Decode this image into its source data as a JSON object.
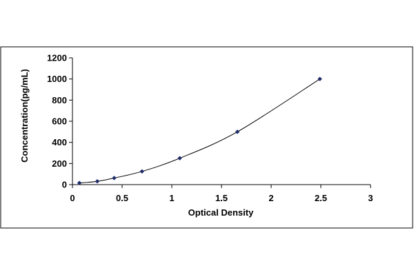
{
  "chart_data": {
    "type": "scatter",
    "title": "",
    "xlabel": "Optical Density",
    "ylabel": "Concentration(pg/mL)",
    "xlim": [
      0,
      3
    ],
    "ylim": [
      0,
      1200
    ],
    "xticks": [
      "0",
      "0.5",
      "1",
      "1.5",
      "2",
      "2.5",
      "3"
    ],
    "yticks": [
      "0",
      "200",
      "400",
      "600",
      "800",
      "1000",
      "1200"
    ],
    "grid": false,
    "legend": "none",
    "trendline": "smooth curve",
    "series": [
      {
        "x": [
          0.07,
          0.25,
          0.42,
          0.7,
          1.08,
          1.66,
          2.49
        ],
        "y": [
          15.6,
          31.2,
          62.5,
          125,
          250,
          500,
          1000
        ],
        "color": "#1f2d6b"
      }
    ],
    "colors": {
      "series": "#1f2d6b",
      "curve": "#000000",
      "border": "#000000"
    }
  }
}
